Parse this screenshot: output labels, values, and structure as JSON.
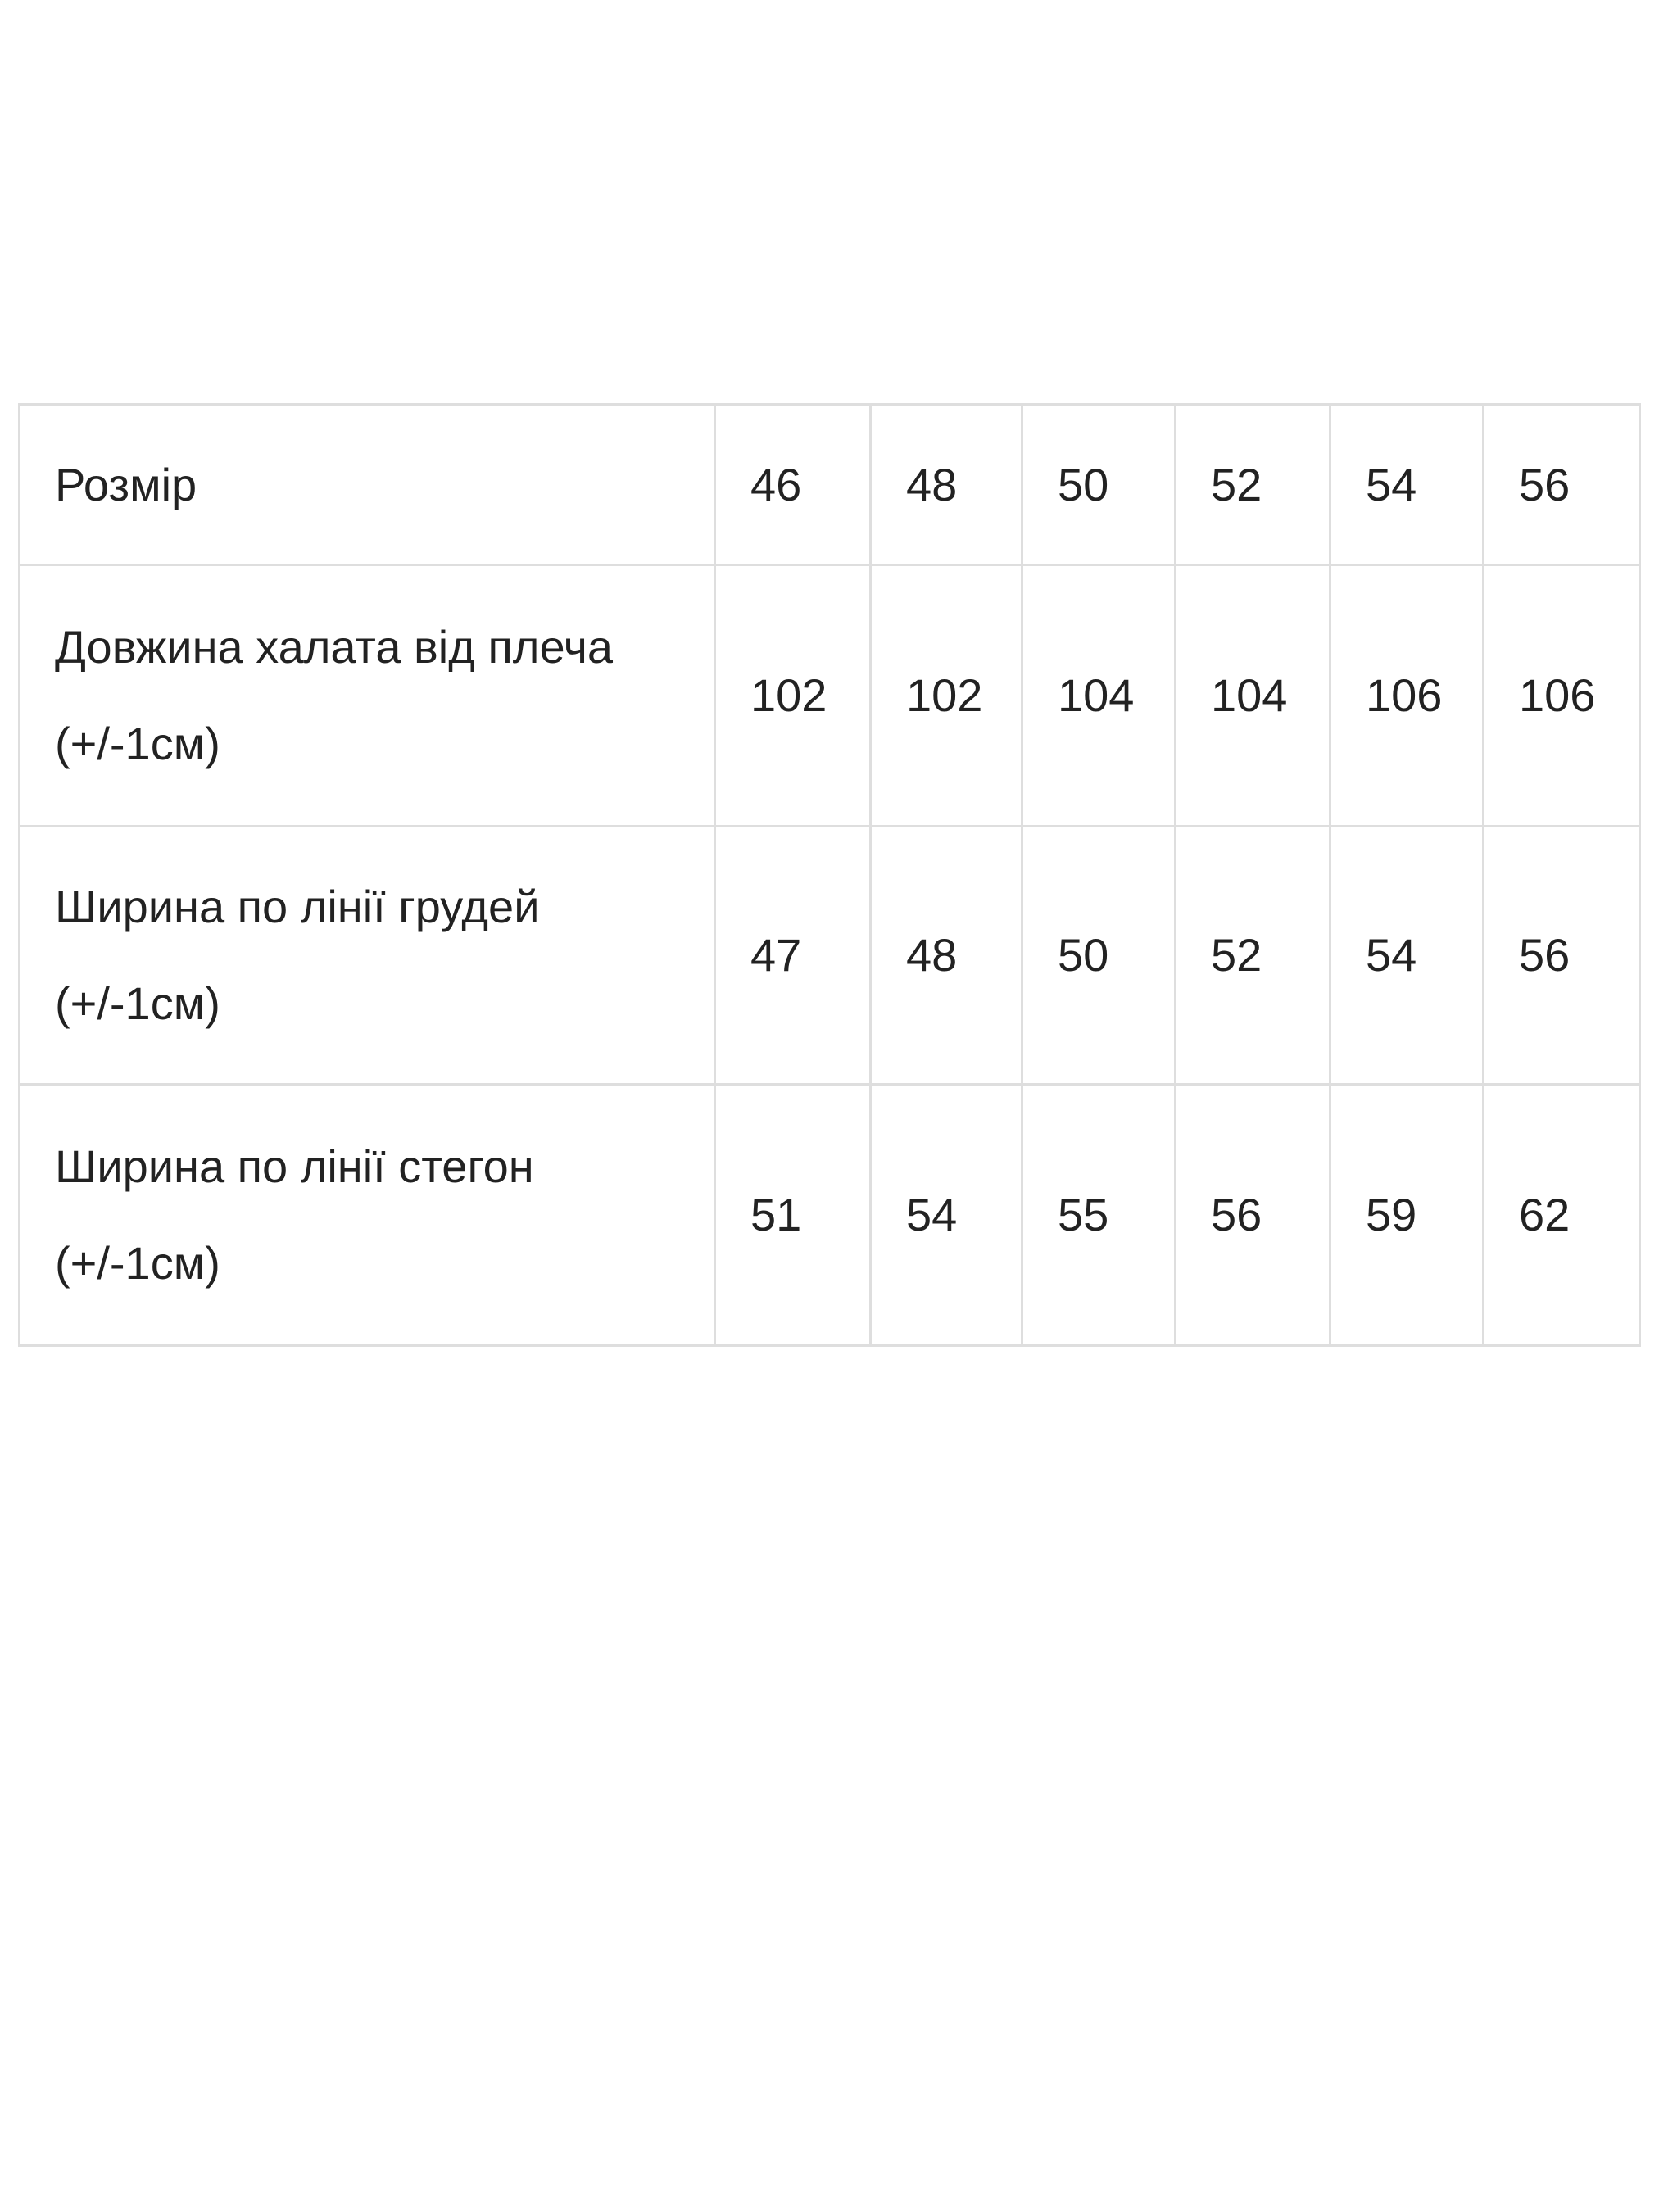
{
  "table": {
    "header": {
      "label": "Розмір",
      "sizes": [
        "46",
        "48",
        "50",
        "52",
        "54",
        "56"
      ]
    },
    "rows": [
      {
        "label": "Довжина халата від плеча (+/-1см)",
        "values": [
          "102",
          "102",
          "104",
          "104",
          "106",
          "106"
        ]
      },
      {
        "label": "Ширина по лінії грудей (+/-1см)",
        "values": [
          "47",
          "48",
          "50",
          "52",
          "54",
          "56"
        ]
      },
      {
        "label": "Ширина по лінії стегон (+/-1см)",
        "values": [
          "51",
          "54",
          "55",
          "56",
          "59",
          "62"
        ]
      }
    ]
  },
  "colors": {
    "border": "#dedede",
    "text": "#222222",
    "background": "#ffffff"
  }
}
